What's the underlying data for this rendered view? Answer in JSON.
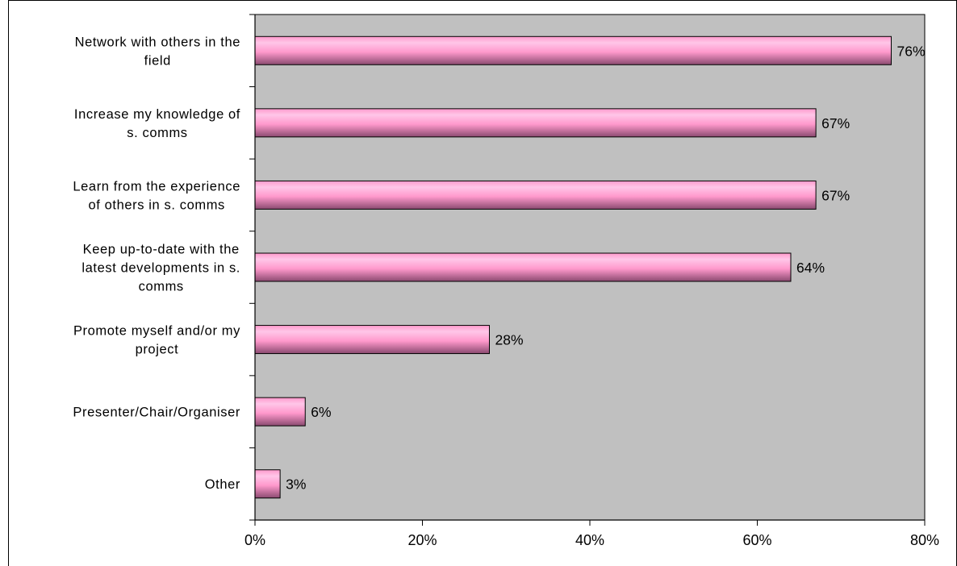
{
  "chart_data": {
    "type": "bar",
    "orientation": "horizontal",
    "categories": [
      "Network with others in the field",
      "Increase my knowledge of s. comms",
      "Learn from the experience of others in s. comms",
      "Keep up-to-date with the latest developments in s. comms",
      "Promote myself and/or my project",
      "Presenter/Chair/Organiser",
      "Other"
    ],
    "category_label_lines": [
      [
        "Network with others in the",
        "field"
      ],
      [
        "Increase my knowledge of",
        "s. comms"
      ],
      [
        "Learn from the experience",
        "of others in s. comms"
      ],
      [
        "Keep up-to-date with the",
        "latest developments in s.",
        "comms"
      ],
      [
        "Promote myself and/or my",
        "project"
      ],
      [
        "Presenter/Chair/Organiser"
      ],
      [
        "Other"
      ]
    ],
    "values": [
      76,
      67,
      67,
      64,
      28,
      6,
      3
    ],
    "data_labels": [
      "76%",
      "67%",
      "67%",
      "64%",
      "28%",
      "6%",
      "3%"
    ],
    "xlim": [
      0,
      80
    ],
    "x_ticks": [
      0,
      20,
      40,
      60,
      80
    ],
    "x_tick_labels": [
      "0%",
      "20%",
      "40%",
      "60%",
      "80%"
    ],
    "title": "",
    "xlabel": "",
    "ylabel": "",
    "grid": false,
    "legend": "none",
    "colors": {
      "plot_background": "#c0c0c0",
      "bar_fill_light": "#ffc6e8",
      "bar_fill_mid": "#ff99cc",
      "bar_fill_dark": "#8a4a70",
      "bar_outline": "#000000",
      "axis": "#000000",
      "frame": "#000000"
    }
  }
}
